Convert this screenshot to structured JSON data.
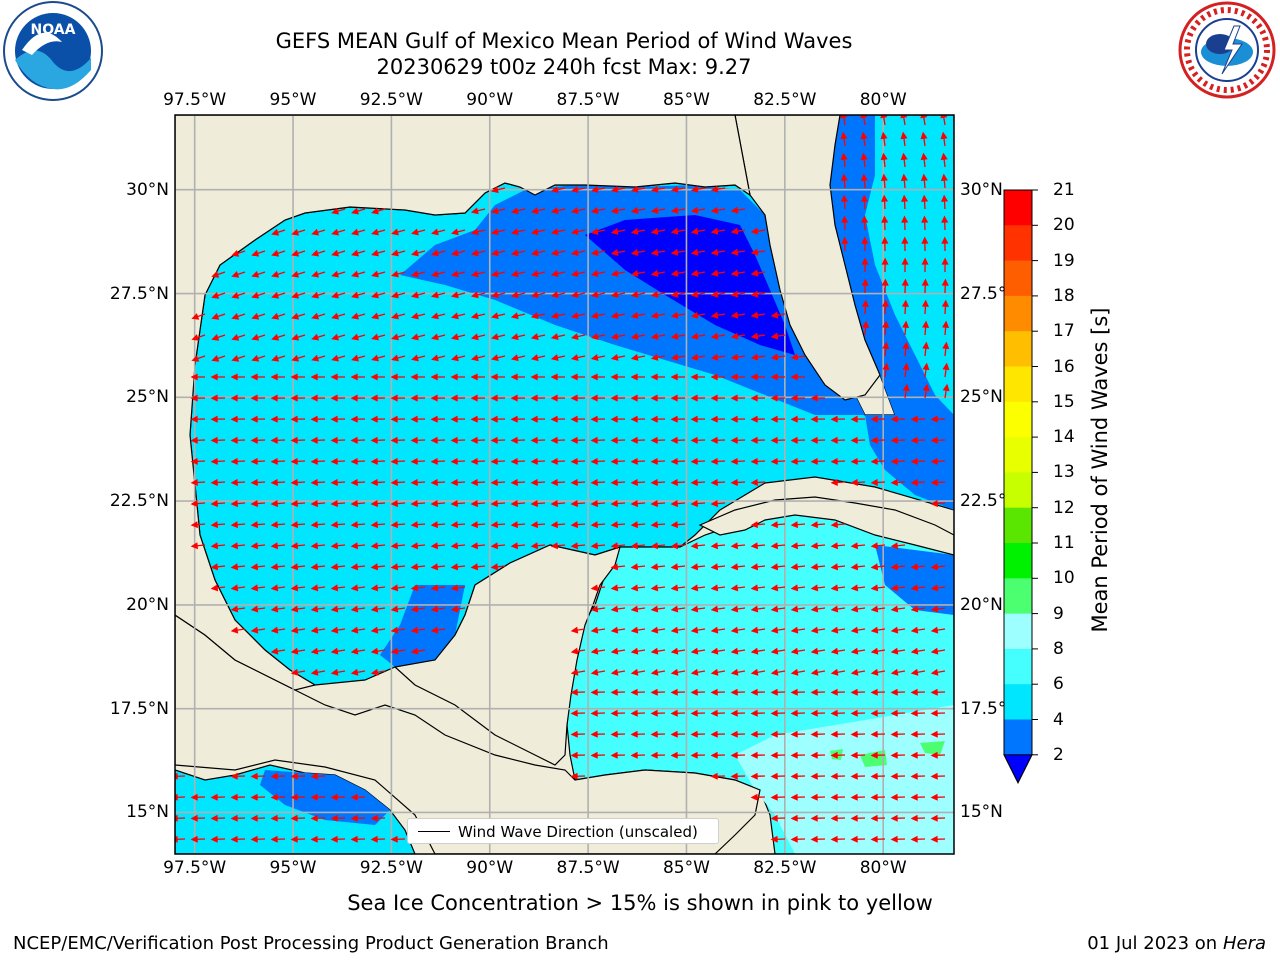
{
  "title": {
    "line1": "GEFS MEAN Gulf of Mexico Mean Period of Wind Waves",
    "line2": "20230629 t00z 240h fcst   Max: 9.27"
  },
  "logos": {
    "left": {
      "icon": "noaa-logo",
      "text": "NOAA"
    },
    "right": {
      "icon": "nws-logo"
    }
  },
  "map": {
    "lon_range": [
      -98,
      -78.2
    ],
    "lat_range": [
      14,
      31.8
    ],
    "lon_ticks": [
      "97.5°W",
      "95°W",
      "92.5°W",
      "90°W",
      "87.5°W",
      "85°W",
      "82.5°W",
      "80°W"
    ],
    "lat_ticks": [
      "30°N",
      "27.5°N",
      "25°N",
      "22.5°N",
      "20°N",
      "17.5°N",
      "15°N"
    ],
    "lat_ticks_right": [
      "30°N",
      "27.5°",
      "25°N",
      "22.5°",
      "20°N",
      "17.5°",
      "15°N"
    ],
    "grid": true,
    "land_color": "#efedda",
    "legend_label": "Wind Wave Direction (unscaled)"
  },
  "colorbar": {
    "label": "Mean Period of Wind Waves [s]",
    "ticks": [
      "2",
      "4",
      "6",
      "8",
      "9",
      "10",
      "11",
      "12",
      "13",
      "14",
      "15",
      "16",
      "17",
      "18",
      "19",
      "20",
      "21"
    ],
    "colors": [
      "#0076ff",
      "#00e6ff",
      "#45ffff",
      "#9dffff",
      "#4cff70",
      "#00f200",
      "#5ae600",
      "#c8ff00",
      "#e8ff00",
      "#fbff00",
      "#ffe600",
      "#ffbe00",
      "#ff8c00",
      "#ff5e00",
      "#ff3200",
      "#ff0000"
    ],
    "extend_color": "#0000ff"
  },
  "note": "Sea Ice Concentration > 15% is shown in pink to yellow",
  "footer": {
    "left": "NCEP/EMC/Verification Post Processing Product Generation Branch",
    "right_prefix": "01 Jul 2023 on ",
    "right_machine": "Hera"
  }
}
